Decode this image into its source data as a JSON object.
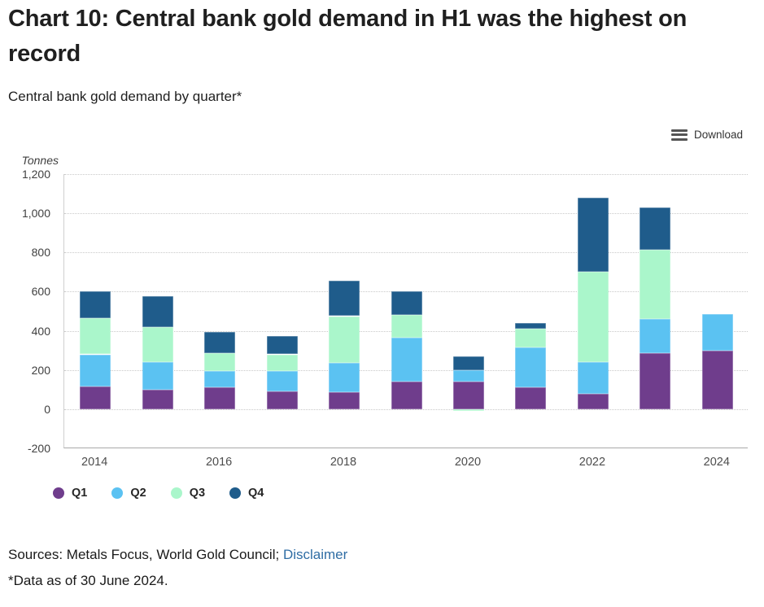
{
  "page": {
    "download_label": "Download",
    "sources_text": "Sources: Metals Focus, World Gold Council; ",
    "disclaimer_label": "Disclaimer",
    "footnote": "*Data as of 30 June 2024."
  },
  "chart_data": {
    "type": "bar",
    "stacked": true,
    "title": "Chart 10: Central bank gold demand in H1 was the highest on record",
    "subtitle": "Central bank gold demand by quarter*",
    "unit_label": "Tonnes",
    "categories": [
      "2014",
      "2015",
      "2016",
      "2017",
      "2018",
      "2019",
      "2020",
      "2021",
      "2022",
      "2023",
      "2024"
    ],
    "x_tick_labels": [
      "2014",
      "2016",
      "2018",
      "2020",
      "2022",
      "2024"
    ],
    "series": [
      {
        "name": "Q1",
        "color": "#6f3d8c",
        "values": [
          115,
          100,
          110,
          90,
          85,
          140,
          140,
          110,
          80,
          285,
          300
        ]
      },
      {
        "name": "Q2",
        "color": "#5bc2f2",
        "values": [
          165,
          140,
          85,
          105,
          150,
          225,
          60,
          205,
          160,
          175,
          185
        ]
      },
      {
        "name": "Q3",
        "color": "#aaf6cb",
        "values": [
          185,
          180,
          90,
          85,
          240,
          115,
          -10,
          95,
          460,
          355,
          0
        ]
      },
      {
        "name": "Q4",
        "color": "#1f5c8b",
        "values": [
          135,
          155,
          110,
          95,
          180,
          120,
          70,
          30,
          380,
          215,
          0
        ]
      }
    ],
    "totals": [
      600,
      575,
      395,
      375,
      655,
      600,
      260,
      440,
      1080,
      1030,
      485
    ],
    "ylabel": "Tonnes",
    "xlabel": "",
    "ylim": [
      -200,
      1200
    ],
    "y_tick_step": 200,
    "grid": "dotted-horizontal",
    "legend_position": "bottom-left"
  }
}
